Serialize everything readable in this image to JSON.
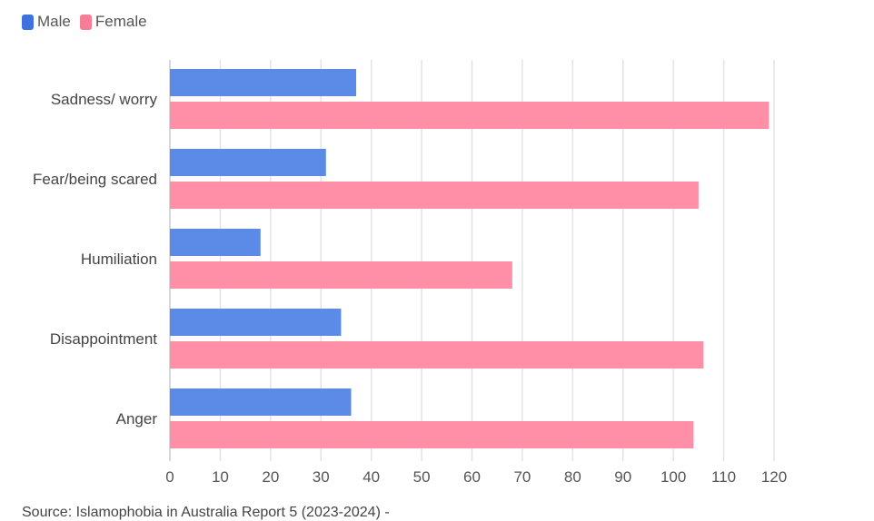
{
  "chart_data": {
    "type": "bar",
    "orientation": "horizontal",
    "categories": [
      "Sadness/ worry",
      "Fear/being scared",
      "Humiliation",
      "Disappointment",
      "Anger"
    ],
    "series": [
      {
        "name": "Male",
        "color": "#5b8be6",
        "values": [
          37,
          31,
          18,
          34,
          36
        ]
      },
      {
        "name": "Female",
        "color": "#ff8fa6",
        "values": [
          119,
          105,
          68,
          106,
          104
        ]
      }
    ],
    "xlim": [
      0,
      120
    ],
    "xticks": [
      0,
      10,
      20,
      30,
      40,
      50,
      60,
      70,
      80,
      90,
      100,
      110,
      120
    ],
    "grid": true,
    "legend_position": "top-left"
  },
  "source_text": "Source: Islamophobia in Australia Report 5 (2023-2024) -"
}
